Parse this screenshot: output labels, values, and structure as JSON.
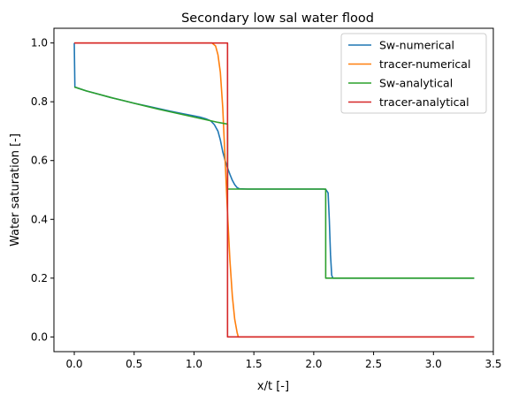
{
  "chart_data": {
    "type": "line",
    "title": "Secondary low sal water flood",
    "xlabel": "x/t [-]",
    "ylabel": "Water saturation [-]",
    "xlim": [
      -0.17,
      3.5
    ],
    "ylim": [
      -0.05,
      1.05
    ],
    "x_ticks": [
      0.0,
      0.5,
      1.0,
      1.5,
      2.0,
      2.5,
      3.0,
      3.5
    ],
    "x_tick_labels": [
      "0.0",
      "0.5",
      "1.0",
      "1.5",
      "2.0",
      "2.5",
      "3.0",
      "3.5"
    ],
    "y_ticks": [
      0.0,
      0.2,
      0.4,
      0.6,
      0.8,
      1.0
    ],
    "y_tick_labels": [
      "0.0",
      "0.2",
      "0.4",
      "0.6",
      "0.8",
      "1.0"
    ],
    "grid": false,
    "legend_position": "top-right",
    "series": [
      {
        "name": "Sw-numerical",
        "color": "#1f77b4",
        "points": [
          [
            0.0,
            1.0
          ],
          [
            0.005,
            0.85
          ],
          [
            0.1,
            0.837
          ],
          [
            0.2,
            0.826
          ],
          [
            0.3,
            0.815
          ],
          [
            0.4,
            0.805
          ],
          [
            0.5,
            0.795
          ],
          [
            0.6,
            0.786
          ],
          [
            0.7,
            0.777
          ],
          [
            0.8,
            0.768
          ],
          [
            0.9,
            0.76
          ],
          [
            1.0,
            0.752
          ],
          [
            1.05,
            0.748
          ],
          [
            1.1,
            0.742
          ],
          [
            1.14,
            0.735
          ],
          [
            1.17,
            0.722
          ],
          [
            1.2,
            0.7
          ],
          [
            1.22,
            0.67
          ],
          [
            1.24,
            0.63
          ],
          [
            1.26,
            0.6
          ],
          [
            1.28,
            0.575
          ],
          [
            1.3,
            0.553
          ],
          [
            1.32,
            0.533
          ],
          [
            1.34,
            0.518
          ],
          [
            1.36,
            0.508
          ],
          [
            1.38,
            0.504
          ],
          [
            1.45,
            0.503
          ],
          [
            1.6,
            0.503
          ],
          [
            1.8,
            0.503
          ],
          [
            2.0,
            0.503
          ],
          [
            2.08,
            0.503
          ],
          [
            2.1,
            0.502
          ],
          [
            2.12,
            0.49
          ],
          [
            2.13,
            0.4
          ],
          [
            2.14,
            0.28
          ],
          [
            2.15,
            0.21
          ],
          [
            2.16,
            0.2
          ],
          [
            2.3,
            0.2
          ],
          [
            2.6,
            0.2
          ],
          [
            3.0,
            0.2
          ],
          [
            3.34,
            0.2
          ]
        ]
      },
      {
        "name": "tracer-numerical",
        "color": "#ff7f0e",
        "points": [
          [
            0.0,
            1.0
          ],
          [
            0.5,
            1.0
          ],
          [
            1.0,
            1.0
          ],
          [
            1.15,
            1.0
          ],
          [
            1.18,
            0.99
          ],
          [
            1.2,
            0.96
          ],
          [
            1.22,
            0.9
          ],
          [
            1.24,
            0.78
          ],
          [
            1.26,
            0.6
          ],
          [
            1.28,
            0.42
          ],
          [
            1.3,
            0.26
          ],
          [
            1.32,
            0.14
          ],
          [
            1.34,
            0.06
          ],
          [
            1.36,
            0.015
          ],
          [
            1.37,
            0.0
          ],
          [
            1.5,
            0.0
          ],
          [
            2.0,
            0.0
          ],
          [
            2.5,
            0.0
          ],
          [
            3.0,
            0.0
          ],
          [
            3.34,
            0.0
          ]
        ]
      },
      {
        "name": "Sw-analytical",
        "color": "#2ca02c",
        "points": [
          [
            0.0,
            0.85
          ],
          [
            0.1,
            0.837
          ],
          [
            0.2,
            0.826
          ],
          [
            0.3,
            0.815
          ],
          [
            0.4,
            0.805
          ],
          [
            0.5,
            0.795
          ],
          [
            0.6,
            0.785
          ],
          [
            0.7,
            0.775
          ],
          [
            0.8,
            0.766
          ],
          [
            0.9,
            0.757
          ],
          [
            1.0,
            0.748
          ],
          [
            1.1,
            0.739
          ],
          [
            1.2,
            0.73
          ],
          [
            1.28,
            0.724
          ],
          [
            1.28,
            0.503
          ],
          [
            1.6,
            0.503
          ],
          [
            2.0,
            0.503
          ],
          [
            2.1,
            0.503
          ],
          [
            2.1,
            0.2
          ],
          [
            2.5,
            0.2
          ],
          [
            3.0,
            0.2
          ],
          [
            3.34,
            0.2
          ]
        ]
      },
      {
        "name": "tracer-analytical",
        "color": "#d62728",
        "points": [
          [
            0.0,
            1.0
          ],
          [
            0.5,
            1.0
          ],
          [
            1.0,
            1.0
          ],
          [
            1.28,
            1.0
          ],
          [
            1.28,
            0.0
          ],
          [
            2.0,
            0.0
          ],
          [
            3.0,
            0.0
          ],
          [
            3.34,
            0.0
          ]
        ]
      }
    ]
  }
}
